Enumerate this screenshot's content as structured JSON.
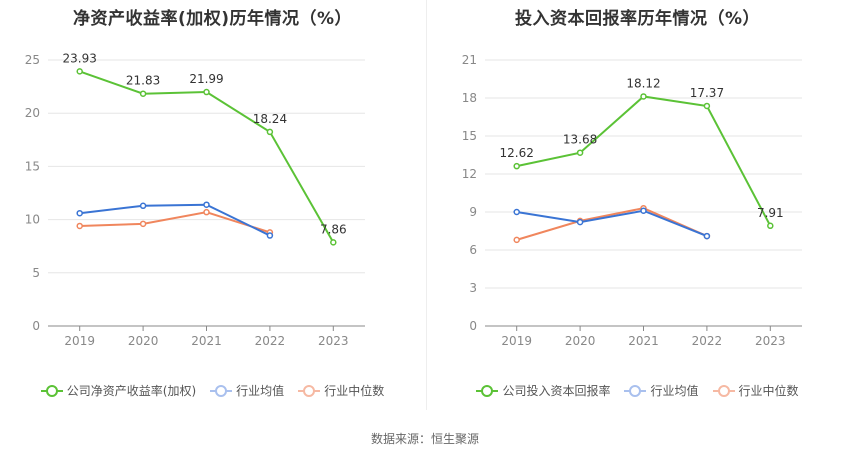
{
  "chart_data": [
    {
      "type": "line",
      "title": "净资产收益率(加权)历年情况（%）",
      "categories": [
        "2019",
        "2020",
        "2021",
        "2022",
        "2023"
      ],
      "ylim": [
        0,
        25
      ],
      "yticks": [
        0,
        5,
        10,
        15,
        20,
        25
      ],
      "grid": true,
      "legend_position": "bottom",
      "series": [
        {
          "name": "公司净资产收益率(加权)",
          "color": "#5bc236",
          "values": [
            23.93,
            21.83,
            21.99,
            18.24,
            7.86
          ],
          "labels": [
            "23.93",
            "21.83",
            "21.99",
            "18.24",
            "7.86"
          ]
        },
        {
          "name": "行业均值",
          "color": "#3a74d4",
          "values": [
            10.6,
            11.3,
            11.4,
            8.5,
            null
          ]
        },
        {
          "name": "行业中位数",
          "color": "#f0865d",
          "values": [
            9.4,
            9.6,
            10.7,
            8.8,
            null
          ]
        }
      ]
    },
    {
      "type": "line",
      "title": "投入资本回报率历年情况（%）",
      "categories": [
        "2019",
        "2020",
        "2021",
        "2022",
        "2023"
      ],
      "ylim": [
        0,
        21
      ],
      "yticks": [
        0,
        3,
        6,
        9,
        12,
        15,
        18,
        21
      ],
      "grid": true,
      "legend_position": "bottom",
      "series": [
        {
          "name": "公司投入资本回报率",
          "color": "#5bc236",
          "values": [
            12.62,
            13.68,
            18.12,
            17.37,
            7.91
          ],
          "labels": [
            "12.62",
            "13.68",
            "18.12",
            "17.37",
            "7.91"
          ]
        },
        {
          "name": "行业均值",
          "color": "#3a74d4",
          "values": [
            9.0,
            8.2,
            9.1,
            7.1,
            null
          ]
        },
        {
          "name": "行业中位数",
          "color": "#f0865d",
          "values": [
            6.8,
            8.3,
            9.3,
            7.1,
            null
          ]
        }
      ]
    }
  ],
  "legend_colors": {
    "company": "#5bc236",
    "avg": "#a9c0ee",
    "median": "#f6b9a3"
  },
  "footer": {
    "source": "数据来源：恒生聚源"
  }
}
